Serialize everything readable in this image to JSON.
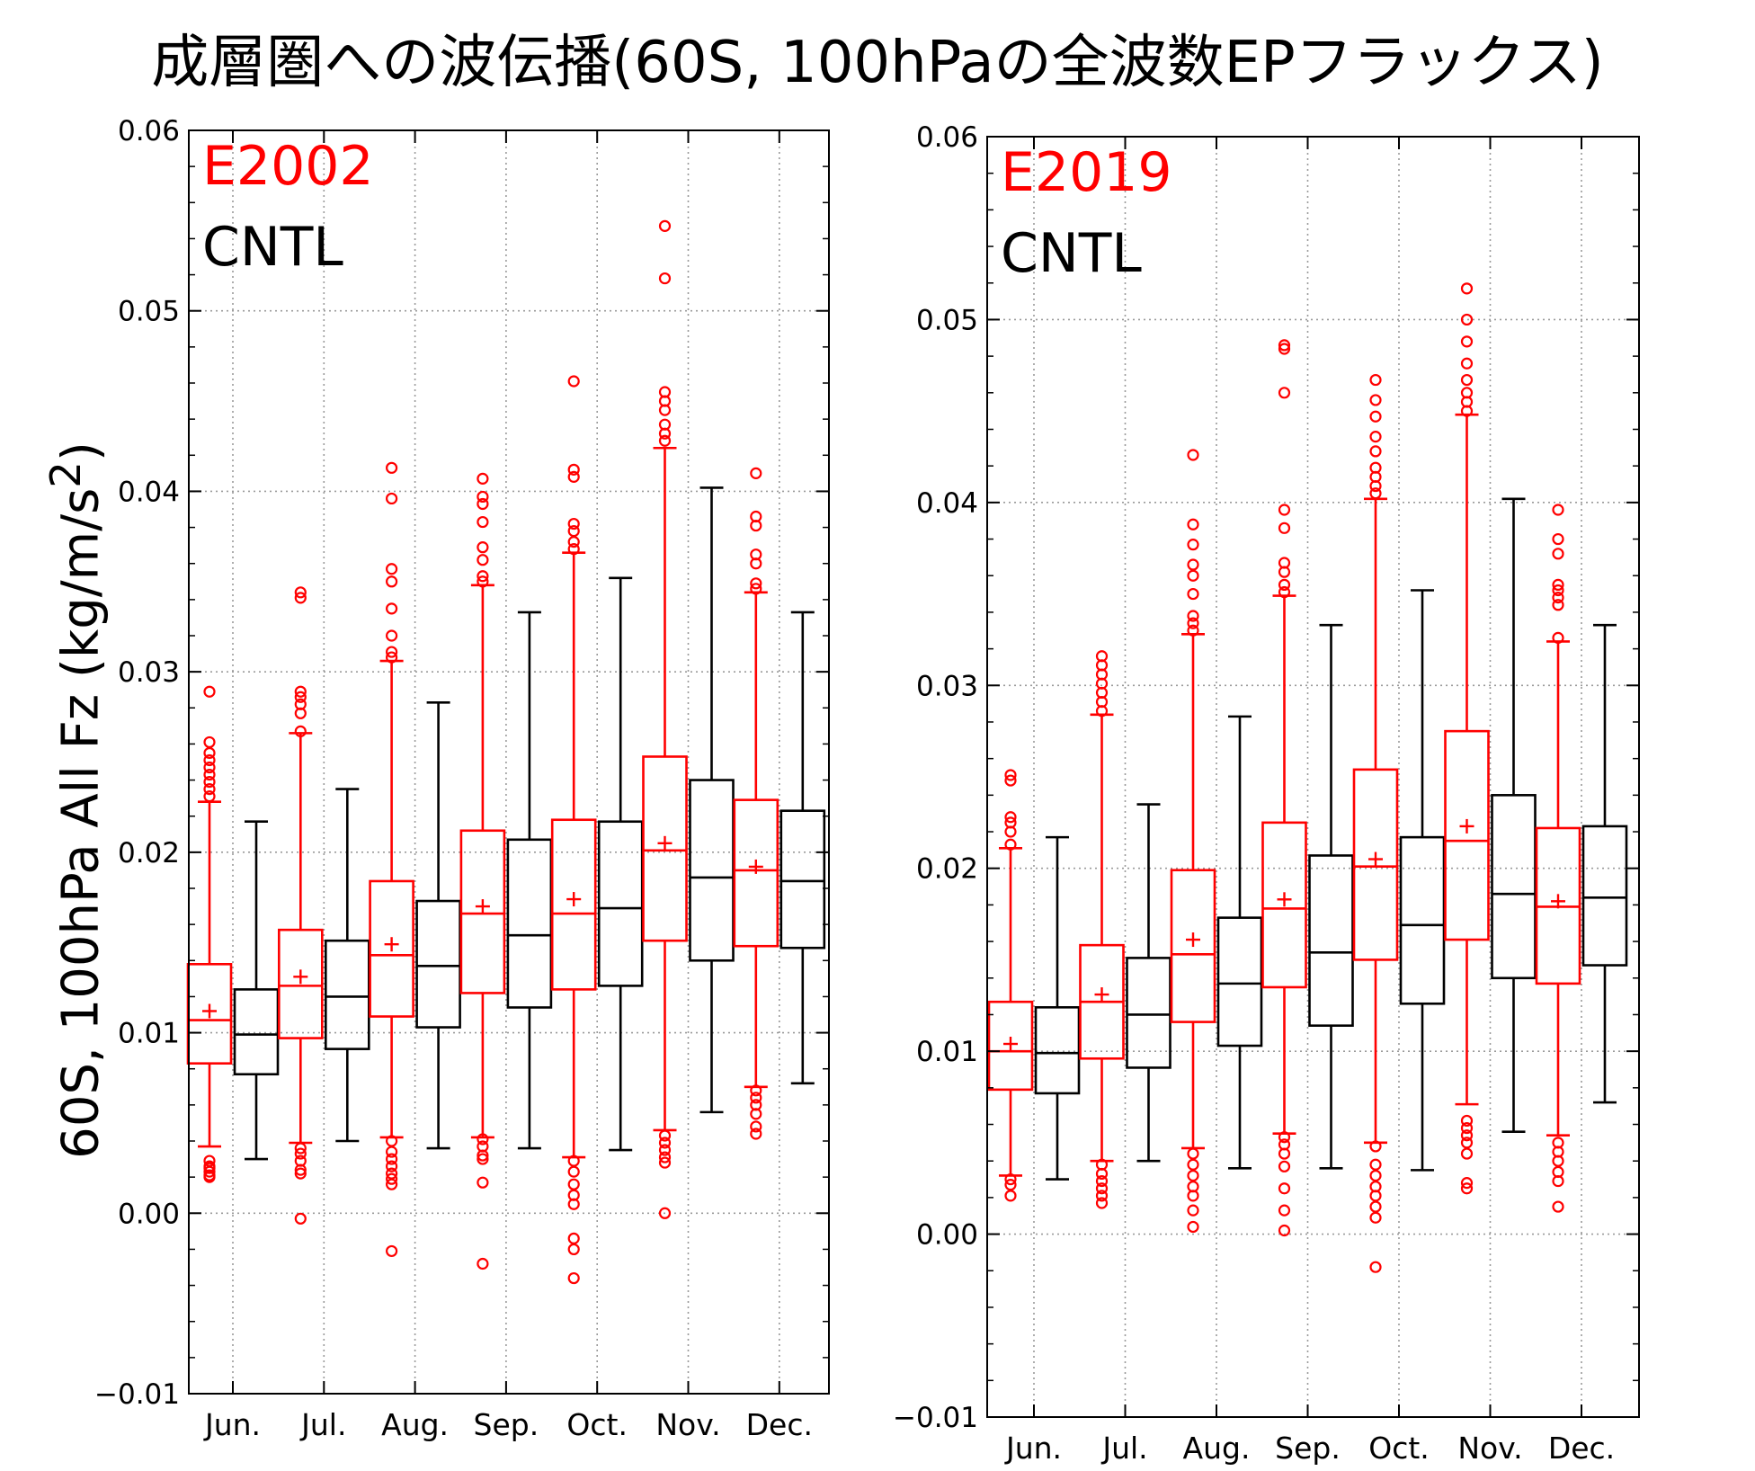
{
  "title": "成層圏への波伝播(60S, 100hPaの全波数EPフラックス)",
  "ylabel_html": "60S, 100hPa All Fz (kg/m/s<sup>2</sup>)",
  "colors": {
    "exp": "#ff0000",
    "cntl": "#000000",
    "grid": "#9a9a9a"
  },
  "chart_data": [
    {
      "type": "box",
      "legend": [
        {
          "label": "E2002",
          "color": "#ff0000"
        },
        {
          "label": "CNTL",
          "color": "#000000"
        }
      ],
      "categories": [
        "Jun.",
        "Jul.",
        "Aug.",
        "Sep.",
        "Oct.",
        "Nov.",
        "Dec."
      ],
      "ylim": [
        -0.01,
        0.06
      ],
      "yticks": [
        -0.01,
        0.0,
        0.01,
        0.02,
        0.03,
        0.04,
        0.05,
        0.06
      ],
      "ytick_labels": [
        "−0.01",
        "0.00",
        "0.01",
        "0.02",
        "0.03",
        "0.04",
        "0.05",
        "0.06"
      ],
      "grid": true,
      "series": [
        {
          "name": "E2002",
          "boxes": [
            {
              "whislo": 0.0037,
              "q1": 0.0083,
              "med": 0.0107,
              "q3": 0.0138,
              "whishi": 0.0228,
              "mean": 0.0112,
              "fliers": [
                0.0029,
                0.0026,
                0.0023,
                0.002,
                0.0025,
                0.0021,
                0.0231,
                0.0235,
                0.0239,
                0.0243,
                0.0247,
                0.0251,
                0.0255,
                0.0261,
                0.0289
              ]
            },
            {
              "whislo": 0.0039,
              "q1": 0.0097,
              "med": 0.0126,
              "q3": 0.0157,
              "whishi": 0.0266,
              "mean": 0.0131,
              "fliers": [
                0.0036,
                0.0033,
                0.0029,
                0.0024,
                0.0022,
                -0.0003,
                0.0267,
                0.0277,
                0.0282,
                0.0286,
                0.0289,
                0.0341,
                0.0344
              ]
            },
            {
              "whislo": 0.0042,
              "q1": 0.0109,
              "med": 0.0143,
              "q3": 0.0184,
              "whishi": 0.0306,
              "mean": 0.0149,
              "fliers": [
                0.004,
                0.0034,
                0.003,
                0.0026,
                0.0022,
                0.0019,
                0.0016,
                -0.0021,
                0.0308,
                0.0311,
                0.032,
                0.0335,
                0.035,
                0.0357,
                0.0396,
                0.0413
              ]
            },
            {
              "whislo": 0.0042,
              "q1": 0.0122,
              "med": 0.0166,
              "q3": 0.0212,
              "whishi": 0.0348,
              "mean": 0.017,
              "fliers": [
                0.0041,
                0.0037,
                0.0032,
                0.003,
                0.0017,
                -0.0028,
                0.035,
                0.0353,
                0.0362,
                0.0369,
                0.0383,
                0.0393,
                0.0397,
                0.0407
              ]
            },
            {
              "whislo": 0.0031,
              "q1": 0.0124,
              "med": 0.0166,
              "q3": 0.0218,
              "whishi": 0.0366,
              "mean": 0.0174,
              "fliers": [
                0.0029,
                0.0023,
                0.0016,
                0.001,
                0.0005,
                -0.0014,
                -0.002,
                -0.0036,
                0.0368,
                0.0372,
                0.0378,
                0.0382,
                0.0408,
                0.0412,
                0.0461
              ]
            },
            {
              "whislo": 0.0046,
              "q1": 0.0151,
              "med": 0.0201,
              "q3": 0.0253,
              "whishi": 0.0424,
              "mean": 0.0205,
              "fliers": [
                0.0043,
                0.0039,
                0.0035,
                0.0031,
                0.0028,
                0.0,
                0.0428,
                0.0432,
                0.0437,
                0.0445,
                0.045,
                0.0455,
                0.0518,
                0.0547
              ]
            },
            {
              "whislo": 0.007,
              "q1": 0.0148,
              "med": 0.019,
              "q3": 0.0229,
              "whishi": 0.0344,
              "mean": 0.0192,
              "fliers": [
                0.0068,
                0.0064,
                0.006,
                0.0055,
                0.0048,
                0.0044,
                0.0346,
                0.0349,
                0.036,
                0.0365,
                0.0381,
                0.0386,
                0.041
              ]
            }
          ]
        },
        {
          "name": "CNTL",
          "boxes": [
            {
              "whislo": 0.003,
              "q1": 0.0077,
              "med": 0.0099,
              "q3": 0.0124,
              "whishi": 0.0217,
              "fliers": []
            },
            {
              "whislo": 0.004,
              "q1": 0.0091,
              "med": 0.012,
              "q3": 0.0151,
              "whishi": 0.0235,
              "fliers": []
            },
            {
              "whislo": 0.0036,
              "q1": 0.0103,
              "med": 0.0137,
              "q3": 0.0173,
              "whishi": 0.0283,
              "fliers": []
            },
            {
              "whislo": 0.0036,
              "q1": 0.0114,
              "med": 0.0154,
              "q3": 0.0207,
              "whishi": 0.0333,
              "fliers": []
            },
            {
              "whislo": 0.0035,
              "q1": 0.0126,
              "med": 0.0169,
              "q3": 0.0217,
              "whishi": 0.0352,
              "fliers": []
            },
            {
              "whislo": 0.0056,
              "q1": 0.014,
              "med": 0.0186,
              "q3": 0.024,
              "whishi": 0.0402,
              "fliers": []
            },
            {
              "whislo": 0.0072,
              "q1": 0.0147,
              "med": 0.0184,
              "q3": 0.0223,
              "whishi": 0.0333,
              "fliers": []
            }
          ]
        }
      ]
    },
    {
      "type": "box",
      "legend": [
        {
          "label": "E2019",
          "color": "#ff0000"
        },
        {
          "label": "CNTL",
          "color": "#000000"
        }
      ],
      "categories": [
        "Jun.",
        "Jul.",
        "Aug.",
        "Sep.",
        "Oct.",
        "Nov.",
        "Dec."
      ],
      "ylim": [
        -0.01,
        0.06
      ],
      "yticks": [
        -0.01,
        0.0,
        0.01,
        0.02,
        0.03,
        0.04,
        0.05,
        0.06
      ],
      "ytick_labels": [
        "−0.01",
        "0.00",
        "0.01",
        "0.02",
        "0.03",
        "0.04",
        "0.05",
        "0.06"
      ],
      "grid": true,
      "series": [
        {
          "name": "E2019",
          "boxes": [
            {
              "whislo": 0.0032,
              "q1": 0.0079,
              "med": 0.01,
              "q3": 0.0127,
              "whishi": 0.0211,
              "mean": 0.0104,
              "fliers": [
                0.003,
                0.0027,
                0.0021,
                0.0213,
                0.022,
                0.0225,
                0.0228,
                0.0248,
                0.0251
              ]
            },
            {
              "whislo": 0.004,
              "q1": 0.0096,
              "med": 0.0127,
              "q3": 0.0158,
              "whishi": 0.0284,
              "mean": 0.0131,
              "fliers": [
                0.0038,
                0.0033,
                0.0029,
                0.0025,
                0.0021,
                0.0017,
                0.0286,
                0.0291,
                0.0296,
                0.0301,
                0.0306,
                0.0311,
                0.0316
              ]
            },
            {
              "whislo": 0.0047,
              "q1": 0.0116,
              "med": 0.0153,
              "q3": 0.0199,
              "whishi": 0.0328,
              "mean": 0.0161,
              "fliers": [
                0.0044,
                0.0038,
                0.0032,
                0.0026,
                0.0021,
                0.0013,
                0.0004,
                0.033,
                0.0334,
                0.0338,
                0.035,
                0.036,
                0.0366,
                0.0377,
                0.0388,
                0.0426
              ]
            },
            {
              "whislo": 0.0055,
              "q1": 0.0135,
              "med": 0.0178,
              "q3": 0.0225,
              "whishi": 0.0349,
              "mean": 0.0183,
              "fliers": [
                0.0053,
                0.0049,
                0.0044,
                0.0037,
                0.0025,
                0.0013,
                0.0002,
                0.0351,
                0.0355,
                0.0362,
                0.0367,
                0.0386,
                0.0396,
                0.046,
                0.0484,
                0.0486
              ]
            },
            {
              "whislo": 0.005,
              "q1": 0.015,
              "med": 0.0201,
              "q3": 0.0254,
              "whishi": 0.0402,
              "mean": 0.0205,
              "fliers": [
                0.0048,
                0.0038,
                0.0032,
                0.0026,
                0.0021,
                0.0015,
                0.0009,
                -0.0018,
                0.0405,
                0.0409,
                0.0414,
                0.0419,
                0.0428,
                0.0436,
                0.0447,
                0.0456,
                0.0467
              ]
            },
            {
              "whislo": 0.0071,
              "q1": 0.0161,
              "med": 0.0215,
              "q3": 0.0275,
              "whishi": 0.0448,
              "mean": 0.0223,
              "fliers": [
                0.0062,
                0.0058,
                0.0054,
                0.005,
                0.0044,
                0.0028,
                0.0025,
                0.045,
                0.0455,
                0.046,
                0.0467,
                0.0476,
                0.0488,
                0.05,
                0.0517
              ]
            },
            {
              "whislo": 0.0054,
              "q1": 0.0137,
              "med": 0.0179,
              "q3": 0.0222,
              "whishi": 0.0324,
              "mean": 0.0182,
              "fliers": [
                0.005,
                0.0045,
                0.004,
                0.0034,
                0.0029,
                0.0015,
                0.0326,
                0.0344,
                0.0348,
                0.0352,
                0.0355,
                0.0372,
                0.038,
                0.0396
              ]
            }
          ]
        },
        {
          "name": "CNTL",
          "boxes": [
            {
              "whislo": 0.003,
              "q1": 0.0077,
              "med": 0.0099,
              "q3": 0.0124,
              "whishi": 0.0217,
              "fliers": []
            },
            {
              "whislo": 0.004,
              "q1": 0.0091,
              "med": 0.012,
              "q3": 0.0151,
              "whishi": 0.0235,
              "fliers": []
            },
            {
              "whislo": 0.0036,
              "q1": 0.0103,
              "med": 0.0137,
              "q3": 0.0173,
              "whishi": 0.0283,
              "fliers": []
            },
            {
              "whislo": 0.0036,
              "q1": 0.0114,
              "med": 0.0154,
              "q3": 0.0207,
              "whishi": 0.0333,
              "fliers": []
            },
            {
              "whislo": 0.0035,
              "q1": 0.0126,
              "med": 0.0169,
              "q3": 0.0217,
              "whishi": 0.0352,
              "fliers": []
            },
            {
              "whislo": 0.0056,
              "q1": 0.014,
              "med": 0.0186,
              "q3": 0.024,
              "whishi": 0.0402,
              "fliers": []
            },
            {
              "whislo": 0.0072,
              "q1": 0.0147,
              "med": 0.0184,
              "q3": 0.0223,
              "whishi": 0.0333,
              "fliers": []
            }
          ]
        }
      ]
    }
  ]
}
